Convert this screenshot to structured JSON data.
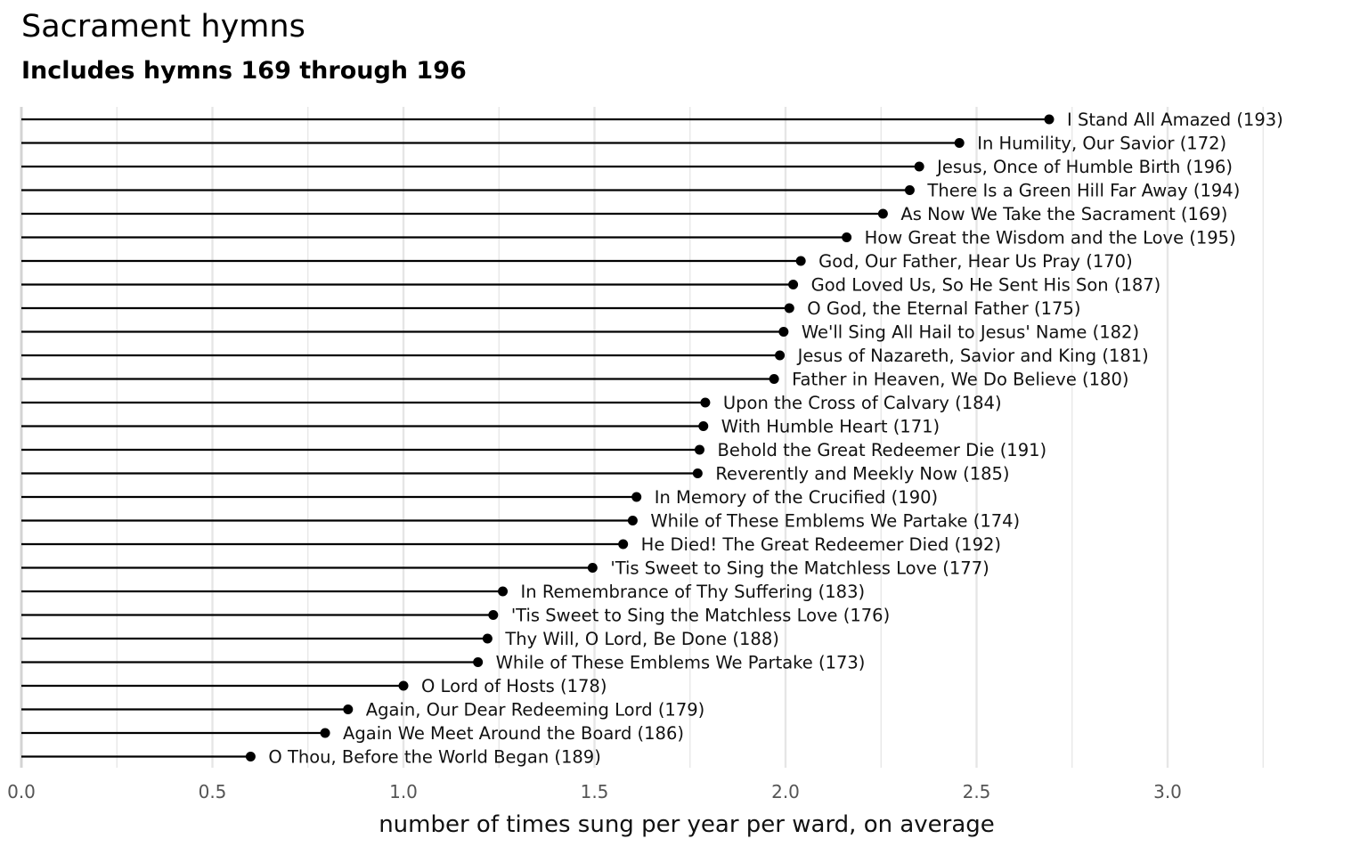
{
  "chart_data": {
    "type": "bar",
    "title": "Sacrament hymns",
    "subtitle": "Includes hymns 169 through 196",
    "xlabel": "number of times sung per year per ward, on average",
    "ylabel": "",
    "xlim": [
      0,
      3.3
    ],
    "xticks": [
      "0.0",
      "0.5",
      "1.0",
      "1.5",
      "2.0",
      "2.5",
      "3.0"
    ],
    "grid": true,
    "orientation": "horizontal",
    "categories": [
      "I Stand All Amazed (193)",
      "In Humility, Our Savior (172)",
      "Jesus, Once of Humble Birth (196)",
      "There Is a Green Hill Far Away (194)",
      "As Now We Take the Sacrament (169)",
      "How Great the Wisdom and the Love (195)",
      "God, Our Father, Hear Us Pray (170)",
      "God Loved Us, So He Sent His Son (187)",
      "O God, the Eternal Father (175)",
      "We'll Sing All Hail to Jesus' Name (182)",
      "Jesus of Nazareth, Savior and King (181)",
      "Father in Heaven, We Do Believe (180)",
      "Upon the Cross of Calvary (184)",
      "With Humble Heart (171)",
      "Behold the Great Redeemer Die (191)",
      "Reverently and Meekly Now (185)",
      "In Memory of the Crucified (190)",
      "While of These Emblems We Partake (174)",
      "He Died! The Great Redeemer Died (192)",
      "'Tis Sweet to Sing the Matchless Love (177)",
      "In Remembrance of Thy Suffering (183)",
      "'Tis Sweet to Sing the Matchless Love (176)",
      "Thy Will, O Lord, Be Done (188)",
      "While of These Emblems We Partake (173)",
      "O Lord of Hosts (178)",
      "Again, Our Dear Redeeming Lord (179)",
      "Again We Meet Around the Board (186)",
      "O Thou, Before the World Began (189)"
    ],
    "values": [
      2.69,
      2.455,
      2.35,
      2.325,
      2.255,
      2.16,
      2.04,
      2.02,
      2.01,
      1.995,
      1.985,
      1.97,
      1.79,
      1.785,
      1.775,
      1.77,
      1.61,
      1.6,
      1.575,
      1.495,
      1.26,
      1.235,
      1.22,
      1.195,
      1.0,
      0.855,
      0.795,
      0.6
    ],
    "marker_color": "#000000",
    "line_color": "#000000",
    "grid_color": "#e6e6e6"
  }
}
